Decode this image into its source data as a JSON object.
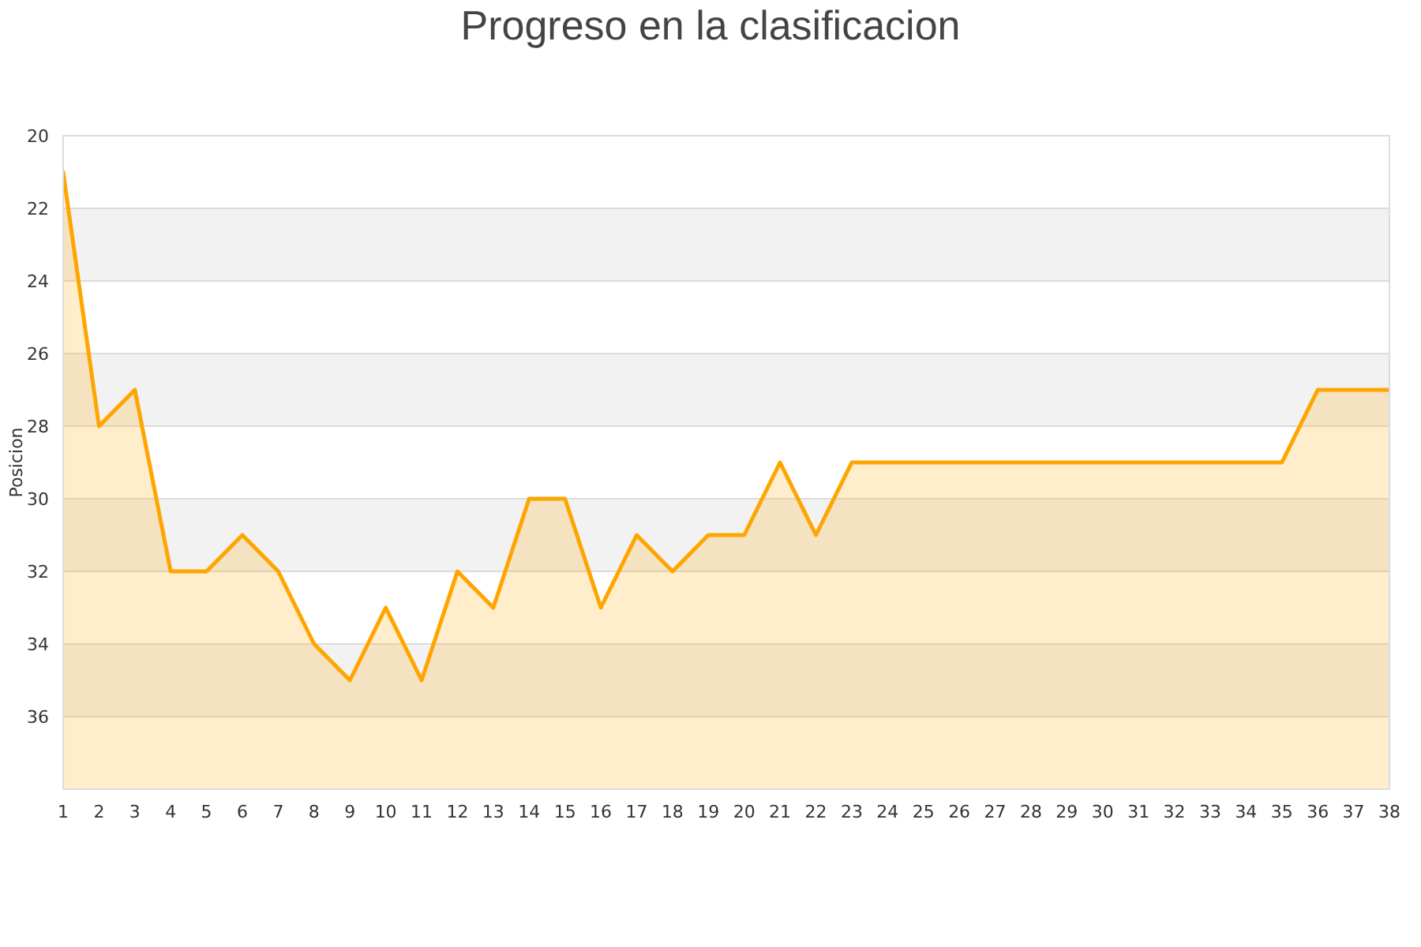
{
  "chart_data": {
    "type": "area",
    "title": "Progreso en la clasificacion",
    "ylabel": "Posicion",
    "x": [
      1,
      2,
      3,
      4,
      5,
      6,
      7,
      8,
      9,
      10,
      11,
      12,
      13,
      14,
      15,
      16,
      17,
      18,
      19,
      20,
      21,
      22,
      23,
      24,
      25,
      26,
      27,
      28,
      29,
      30,
      31,
      32,
      33,
      34,
      35,
      36,
      37,
      38
    ],
    "series": [
      {
        "color": "#ffa500",
        "values": [
          21,
          28,
          27,
          32,
          32,
          31,
          32,
          34,
          35,
          33,
          35,
          32,
          33,
          30,
          30,
          33,
          31,
          32,
          31,
          31,
          29,
          31,
          29,
          29,
          29,
          29,
          29,
          29,
          29,
          29,
          29,
          29,
          29,
          29,
          29,
          27,
          27,
          27
        ]
      }
    ],
    "xlim": [
      1,
      38
    ],
    "xticks": [
      1,
      2,
      3,
      4,
      5,
      6,
      7,
      8,
      9,
      10,
      11,
      12,
      13,
      14,
      15,
      16,
      17,
      18,
      19,
      20,
      21,
      22,
      23,
      24,
      25,
      26,
      27,
      28,
      29,
      30,
      31,
      32,
      33,
      34,
      35,
      36,
      37,
      38
    ],
    "ylim": [
      38,
      20
    ],
    "yticks": [
      20,
      22,
      24,
      26,
      28,
      30,
      32,
      34,
      36
    ],
    "grid": "y",
    "line_style": "solid"
  }
}
